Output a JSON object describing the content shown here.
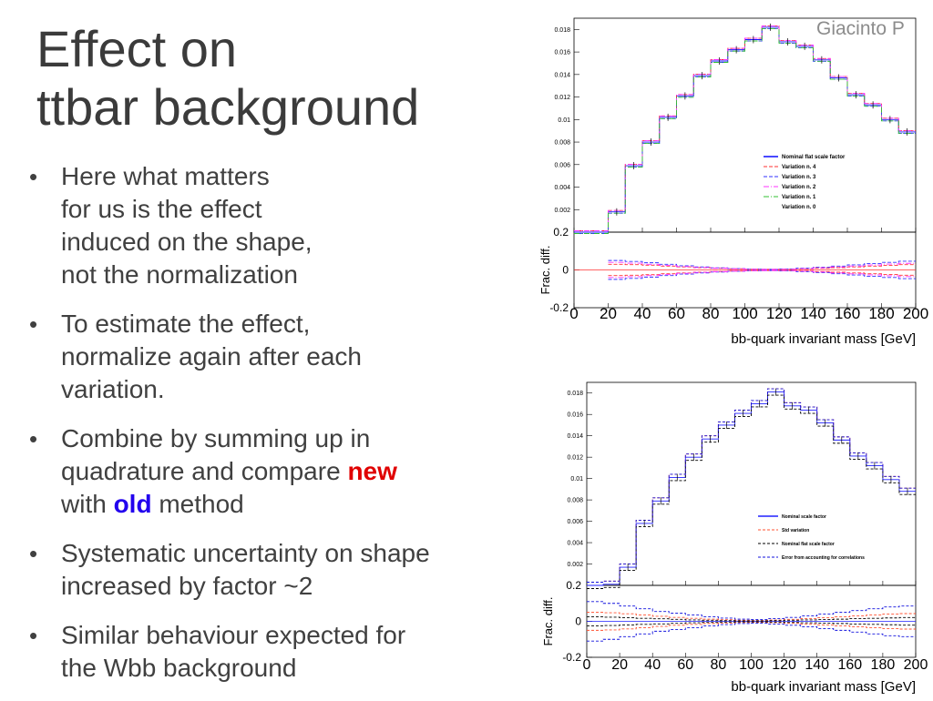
{
  "slide": {
    "title_lines": [
      "Effect on",
      "ttbar background"
    ],
    "author": "Giacinto P",
    "bullets": [
      {
        "lines": [
          "Here what matters",
          "for us is the effect",
          "induced on the shape,",
          "not the normalization"
        ]
      },
      {
        "lines": [
          "To estimate the effect,",
          "normalize again after each",
          "variation."
        ]
      },
      {
        "lines_rich": [
          {
            "pre": "Combine by summing up in"
          },
          {
            "pre": "quadrature and compare ",
            "hl": "new",
            "hl_type": "new",
            "post": ""
          },
          {
            "pre": "with ",
            "hl": "old",
            "hl_type": "old",
            "post": " method"
          }
        ]
      },
      {
        "lines": [
          "Systematic uncertainty on shape",
          "increased by factor ~2"
        ]
      },
      {
        "lines": [
          "Similar behaviour expected for",
          "the Wbb background"
        ]
      }
    ],
    "bullet_char": "•"
  },
  "chart_data": [
    {
      "type": "line",
      "style": "step",
      "xlabel": "bb-quark invariant mass [GeV]",
      "ylabel": "",
      "ratio_ylabel": "Frac. diff.",
      "xlim": [
        0,
        200
      ],
      "ylim": [
        0,
        0.019
      ],
      "ratio_ylim": [
        -0.2,
        0.2
      ],
      "x_ticks": [
        0,
        20,
        40,
        60,
        80,
        100,
        120,
        140,
        160,
        180,
        200
      ],
      "y_ticks": [
        0.002,
        0.004,
        0.006,
        0.008,
        0.01,
        0.012,
        0.014,
        0.016,
        0.018
      ],
      "y_tick_labels": [
        "0.002",
        "0.004",
        "0.006",
        "0.008",
        "0.01",
        "0.012",
        "0.014",
        "0.016",
        "0.018"
      ],
      "ratio_ticks": [
        -0.2,
        0,
        0.2
      ],
      "ratio_tick_labels": [
        "-0.2",
        "0",
        "0.2"
      ],
      "bin_edges": [
        0,
        10,
        20,
        30,
        40,
        50,
        60,
        70,
        80,
        90,
        100,
        110,
        120,
        130,
        140,
        150,
        160,
        170,
        180,
        190,
        200
      ],
      "series": [
        {
          "name": "Nominal flat scale factor",
          "color": "#1a1aff",
          "dash": "",
          "values": [
            0,
            0,
            0.0018,
            0.0059,
            0.008,
            0.0102,
            0.0121,
            0.0139,
            0.0152,
            0.0162,
            0.0171,
            0.0182,
            0.0169,
            0.0165,
            0.0153,
            0.0137,
            0.0122,
            0.0113,
            0.01,
            0.0089
          ]
        },
        {
          "name": "Variation n. 4",
          "color": "#ff3030",
          "dash": "4,2",
          "values": [
            0,
            0,
            0.0018,
            0.0059,
            0.008,
            0.0102,
            0.0121,
            0.0139,
            0.0152,
            0.0162,
            0.0171,
            0.0182,
            0.0169,
            0.0165,
            0.0153,
            0.0137,
            0.0122,
            0.0113,
            0.01,
            0.0089
          ]
        },
        {
          "name": "Variation n. 3",
          "color": "#3030ff",
          "dash": "4,2",
          "values": [
            0,
            0,
            0.0018,
            0.0059,
            0.008,
            0.0102,
            0.0121,
            0.0139,
            0.0152,
            0.0162,
            0.0171,
            0.0182,
            0.0169,
            0.0165,
            0.0153,
            0.0137,
            0.0122,
            0.0113,
            0.01,
            0.0089
          ]
        },
        {
          "name": "Variation n. 2",
          "color": "#ff30ff",
          "dash": "6,2,1,2",
          "values": [
            0,
            0,
            0.0018,
            0.0059,
            0.008,
            0.0102,
            0.0121,
            0.0139,
            0.0152,
            0.0162,
            0.0171,
            0.0182,
            0.0169,
            0.0165,
            0.0153,
            0.0137,
            0.0122,
            0.0113,
            0.01,
            0.0089
          ]
        },
        {
          "name": "Variation n. 1",
          "color": "#30c030",
          "dash": "6,2,1,2",
          "values": [
            0,
            0,
            0.0018,
            0.0059,
            0.008,
            0.0102,
            0.0121,
            0.0139,
            0.0152,
            0.0162,
            0.0171,
            0.0182,
            0.0169,
            0.0165,
            0.0153,
            0.0137,
            0.0122,
            0.0113,
            0.01,
            0.0089
          ]
        },
        {
          "name": "Variation n. 0",
          "color": "#ffffff",
          "dash": "",
          "values": []
        }
      ],
      "ratio_bands": [
        {
          "color": "#ff3030",
          "dash": "4,2",
          "values": [
            0.03,
            0.028,
            0.025,
            0.02,
            0.016,
            0.012,
            0.009,
            0.006,
            0.004,
            0.003,
            0.004,
            0.006,
            0.009,
            0.012,
            0.016,
            0.02,
            0.024,
            0.028
          ]
        },
        {
          "color": "#3030ff",
          "dash": "4,2",
          "values": [
            0.05,
            0.045,
            0.038,
            0.03,
            0.022,
            0.016,
            0.011,
            0.007,
            0.004,
            0.003,
            0.005,
            0.009,
            0.014,
            0.02,
            0.027,
            0.034,
            0.04,
            0.046
          ]
        },
        {
          "color": "#ff30ff",
          "dash": "6,2,1,2",
          "values": [
            0.04,
            0.036,
            0.03,
            0.024,
            0.018,
            0.013,
            0.009,
            0.006,
            0.004,
            0.003,
            0.004,
            0.007,
            0.011,
            0.016,
            0.021,
            0.026,
            0.031,
            0.035
          ]
        }
      ],
      "legend_position": "right"
    },
    {
      "type": "line",
      "style": "step",
      "xlabel": "bb-quark invariant mass [GeV]",
      "ylabel": "",
      "ratio_ylabel": "Frac. diff.",
      "xlim": [
        0,
        200
      ],
      "ylim": [
        0,
        0.019
      ],
      "ratio_ylim": [
        -0.2,
        0.2
      ],
      "x_ticks": [
        0,
        20,
        40,
        60,
        80,
        100,
        120,
        140,
        160,
        180,
        200
      ],
      "y_ticks": [
        0.002,
        0.004,
        0.006,
        0.008,
        0.01,
        0.012,
        0.014,
        0.016,
        0.018
      ],
      "y_tick_labels": [
        "0.002",
        "0.004",
        "0.006",
        "0.008",
        "0.01",
        "0.012",
        "0.014",
        "0.016",
        "0.018"
      ],
      "ratio_ticks": [
        -0.2,
        0,
        0.2
      ],
      "ratio_tick_labels": [
        "-0.2",
        "0",
        "0.2"
      ],
      "bin_edges": [
        0,
        10,
        20,
        30,
        40,
        50,
        60,
        70,
        80,
        90,
        100,
        110,
        120,
        130,
        140,
        150,
        160,
        170,
        180,
        190,
        200
      ],
      "series": [
        {
          "name": "Nominal scale factor",
          "color": "#2020ff",
          "dash": "",
          "values": [
            0,
            0.0001,
            0.0017,
            0.0058,
            0.0079,
            0.0101,
            0.012,
            0.0137,
            0.015,
            0.0161,
            0.017,
            0.0181,
            0.0168,
            0.0164,
            0.0152,
            0.0136,
            0.0121,
            0.0112,
            0.0099,
            0.0088
          ]
        },
        {
          "name": "Std variation",
          "color": "#ff5030",
          "dash": "3,2",
          "values": [
            0,
            0.0001,
            0.0017,
            0.0058,
            0.0079,
            0.0101,
            0.012,
            0.0137,
            0.015,
            0.0161,
            0.017,
            0.0181,
            0.0168,
            0.0164,
            0.0152,
            0.0136,
            0.0121,
            0.0112,
            0.0099,
            0.0088
          ]
        },
        {
          "name": "Nominal flat scale factor",
          "color": "#000000",
          "dash": "3,2",
          "values": [
            0,
            0.0001,
            0.0017,
            0.0058,
            0.0079,
            0.0101,
            0.012,
            0.0137,
            0.015,
            0.0161,
            0.017,
            0.0181,
            0.0168,
            0.0164,
            0.0152,
            0.0136,
            0.0121,
            0.0112,
            0.0099,
            0.0088
          ]
        },
        {
          "name": "Error from accounting for correlations",
          "color": "#1010dd",
          "dash": "3,2",
          "values": [
            0,
            0.0001,
            0.0017,
            0.0058,
            0.0079,
            0.0101,
            0.012,
            0.0137,
            0.015,
            0.0161,
            0.017,
            0.0181,
            0.0168,
            0.0164,
            0.0152,
            0.0136,
            0.0121,
            0.0112,
            0.0099,
            0.0088
          ]
        }
      ],
      "ratio_bands": [
        {
          "color": "#1010dd",
          "dash": "3,2",
          "values": [
            0.11,
            0.1,
            0.085,
            0.07,
            0.055,
            0.045,
            0.035,
            0.025,
            0.018,
            0.012,
            0.01,
            0.015,
            0.022,
            0.03,
            0.04,
            0.05,
            0.06,
            0.07,
            0.08,
            0.085
          ]
        },
        {
          "color": "#ff5030",
          "dash": "3,2",
          "values": [
            0.05,
            0.048,
            0.042,
            0.035,
            0.028,
            0.022,
            0.017,
            0.012,
            0.009,
            0.006,
            0.005,
            0.007,
            0.011,
            0.015,
            0.02,
            0.025,
            0.03,
            0.035,
            0.04,
            0.043
          ]
        },
        {
          "color": "#000000",
          "dash": "3,2",
          "values": [
            0.025,
            0.023,
            0.02,
            0.017,
            0.014,
            0.011,
            0.008,
            0.006,
            0.004,
            0.003,
            0.003,
            0.004,
            0.006,
            0.008,
            0.01,
            0.012,
            0.015,
            0.017,
            0.019,
            0.021
          ]
        }
      ],
      "legend_position": "right"
    }
  ]
}
